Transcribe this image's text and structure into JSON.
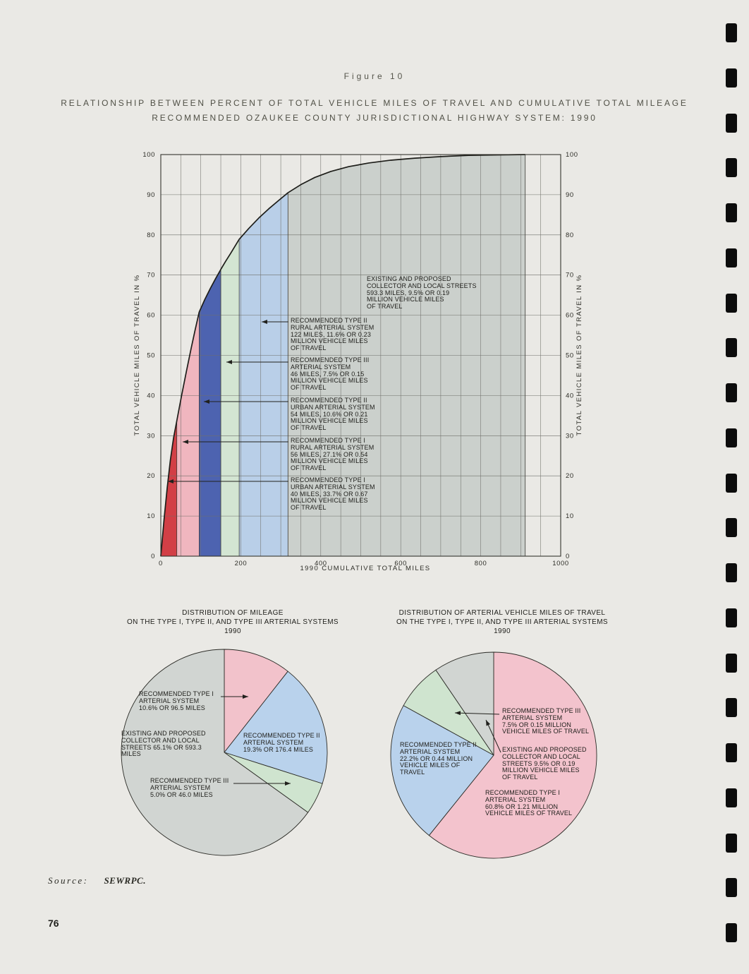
{
  "header": {
    "figure_label": "Figure 10",
    "title_line1": "RELATIONSHIP BETWEEN PERCENT OF TOTAL VEHICLE MILES OF TRAVEL AND CUMULATIVE TOTAL MILEAGE",
    "title_line2": "RECOMMENDED OZAUKEE COUNTY JURISDICTIONAL HIGHWAY SYSTEM:  1990"
  },
  "footer": {
    "source_label": "Source:",
    "source_value": "SEWRPC.",
    "page_number": "76"
  },
  "binding": {
    "count": 21
  },
  "chart_data": [
    {
      "id": "cumulative-travel-curve",
      "type": "area",
      "xlabel": "1990 CUMULATIVE TOTAL MILES",
      "ylabel": "TOTAL VEHICLE MILES OF TRAVEL IN %",
      "ylabel_both_sides": true,
      "xlim": [
        0,
        1000
      ],
      "ylim": [
        0,
        100
      ],
      "xticks": [
        0,
        200,
        400,
        600,
        800,
        1000
      ],
      "yticks": [
        0,
        10,
        20,
        30,
        40,
        50,
        60,
        70,
        80,
        90,
        100
      ],
      "x_grid_step": 50,
      "y_grid_step": 10,
      "grid": true,
      "segments": [
        {
          "id": "type-1-urban",
          "label": "RECOMMENDED TYPE I URBAN ARTERIAL SYSTEM",
          "x0": 0,
          "x1": 40,
          "miles": 40,
          "percent_of_travel": 33.7,
          "million_vehicle_miles": 0.67,
          "color": "#d23f46"
        },
        {
          "id": "type-1-rural",
          "label": "RECOMMENDED TYPE I RURAL ARTERIAL SYSTEM",
          "x0": 40,
          "x1": 96,
          "miles": 56,
          "percent_of_travel": 27.1,
          "million_vehicle_miles": 0.54,
          "color": "#f0b6bf"
        },
        {
          "id": "type-2-urban",
          "label": "RECOMMENDED TYPE II URBAN ARTERIAL SYSTEM",
          "x0": 96,
          "x1": 150,
          "miles": 54,
          "percent_of_travel": 10.6,
          "million_vehicle_miles": 0.21,
          "color": "#4d63b0"
        },
        {
          "id": "type-3",
          "label": "RECOMMENDED TYPE III ARTERIAL SYSTEM",
          "x0": 150,
          "x1": 196,
          "miles": 46,
          "percent_of_travel": 7.5,
          "million_vehicle_miles": 0.15,
          "color": "#d3e5d2"
        },
        {
          "id": "type-2-rural",
          "label": "RECOMMENDED TYPE II RURAL ARTERIAL SYSTEM",
          "x0": 196,
          "x1": 318,
          "miles": 122,
          "percent_of_travel": 11.6,
          "million_vehicle_miles": 0.23,
          "color": "#b9cfe8"
        },
        {
          "id": "collector-local",
          "label": "EXISTING AND PROPOSED COLLECTOR AND LOCAL STREETS",
          "x0": 318,
          "x1": 911.3,
          "miles": 593.3,
          "percent_of_travel": 9.5,
          "million_vehicle_miles": 0.19,
          "color": "#cbd0cc"
        }
      ],
      "curve_points": [
        [
          0,
          0
        ],
        [
          8,
          9
        ],
        [
          16,
          17
        ],
        [
          24,
          24
        ],
        [
          32,
          29.5
        ],
        [
          40,
          33.7
        ],
        [
          52,
          40
        ],
        [
          64,
          46
        ],
        [
          76,
          51.8
        ],
        [
          86,
          56.4
        ],
        [
          96,
          60.8
        ],
        [
          110,
          63.9
        ],
        [
          124,
          66.7
        ],
        [
          137,
          69.1
        ],
        [
          150,
          71.4
        ],
        [
          162,
          73.4
        ],
        [
          174,
          75.3
        ],
        [
          185,
          77.1
        ],
        [
          196,
          78.9
        ],
        [
          220,
          81.6
        ],
        [
          245,
          84.2
        ],
        [
          270,
          86.5
        ],
        [
          295,
          88.6
        ],
        [
          318,
          90.5
        ],
        [
          350,
          92.5
        ],
        [
          385,
          94.3
        ],
        [
          425,
          95.8
        ],
        [
          470,
          97
        ],
        [
          520,
          97.9
        ],
        [
          575,
          98.6
        ],
        [
          635,
          99.1
        ],
        [
          700,
          99.5
        ],
        [
          770,
          99.8
        ],
        [
          840,
          99.9
        ],
        [
          911.3,
          100
        ]
      ],
      "annotations": [
        {
          "target": "collector-local",
          "lines": [
            "EXISTING AND PROPOSED",
            "COLLECTOR AND LOCAL STREETS",
            "593.3 MILES, 9.5% OR 0.19",
            "MILLION VEHICLE MILES",
            "OF TRAVEL"
          ]
        },
        {
          "target": "type-2-rural",
          "lines": [
            "RECOMMENDED TYPE II",
            "RURAL ARTERIAL SYSTEM",
            "122 MILES, 11.6% OR 0.23",
            "MILLION VEHICLE MILES",
            "OF TRAVEL"
          ]
        },
        {
          "target": "type-3",
          "lines": [
            "RECOMMENDED TYPE III",
            "ARTERIAL SYSTEM",
            "46 MILES, 7.5% OR 0.15",
            "MILLION VEHICLE MILES",
            "OF TRAVEL"
          ]
        },
        {
          "target": "type-2-urban",
          "lines": [
            "RECOMMENDED TYPE II",
            "URBAN ARTERIAL SYSTEM",
            "54 MILES, 10.6% OR 0.21",
            "MILLION VEHICLE MILES",
            "OF TRAVEL"
          ]
        },
        {
          "target": "type-1-rural",
          "lines": [
            "RECOMMENDED TYPE I",
            "RURAL ARTERIAL SYSTEM",
            "56 MILES, 27.1% OR 0.54",
            "MILLION VEHICLE MILES",
            "OF TRAVEL"
          ]
        },
        {
          "target": "type-1-urban",
          "lines": [
            "RECOMMENDED TYPE I",
            "URBAN ARTERIAL SYSTEM",
            "40 MILES, 33.7% OR 0.67",
            "MILLION VEHICLE MILES",
            "OF TRAVEL"
          ]
        }
      ]
    },
    {
      "id": "mileage-distribution-pie",
      "type": "pie",
      "title_lines": [
        "DISTRIBUTION OF MILEAGE",
        "ON THE TYPE I, TYPE II, AND TYPE III ARTERIAL SYSTEMS",
        "1990"
      ],
      "start_angle_deg": 0,
      "slices": [
        {
          "name": "RECOMMENDED TYPE I ARTERIAL SYSTEM",
          "value": 10.6,
          "detail": "96.5 MILES",
          "color": "#f2c2cb"
        },
        {
          "name": "RECOMMENDED TYPE II ARTERIAL SYSTEM",
          "value": 19.3,
          "detail": "176.4 MILES",
          "color": "#b9d2ec"
        },
        {
          "name": "RECOMMENDED TYPE III ARTERIAL SYSTEM",
          "value": 5.0,
          "detail": "46.0 MILES",
          "color": "#cfe4cf"
        },
        {
          "name": "EXISTING AND PROPOSED COLLECTOR AND LOCAL STREETS",
          "value": 65.1,
          "detail": "593.3 MILES",
          "color": "#d1d5d2"
        }
      ],
      "labels": [
        {
          "target": "type-1",
          "lines": [
            "RECOMMENDED TYPE I",
            "ARTERIAL SYSTEM",
            "10.6% OR 96.5 MILES"
          ]
        },
        {
          "target": "collector-local",
          "lines": [
            "EXISTING AND PROPOSED",
            "COLLECTOR AND LOCAL",
            "STREETS 65.1% OR 593.3",
            "MILES"
          ]
        },
        {
          "target": "type-2",
          "lines": [
            "RECOMMENDED TYPE II",
            "ARTERIAL SYSTEM",
            "19.3% OR 176.4 MILES"
          ]
        },
        {
          "target": "type-3",
          "lines": [
            "RECOMMENDED TYPE III",
            "ARTERIAL SYSTEM",
            "5.0% OR 46.0 MILES"
          ]
        }
      ]
    },
    {
      "id": "travel-distribution-pie",
      "type": "pie",
      "title_lines": [
        "DISTRIBUTION OF ARTERIAL VEHICLE MILES OF TRAVEL",
        "ON THE TYPE I, TYPE II, AND TYPE III ARTERIAL SYSTEMS",
        "1990"
      ],
      "start_angle_deg": 0,
      "slices": [
        {
          "name": "RECOMMENDED TYPE I ARTERIAL SYSTEM",
          "value": 60.8,
          "detail": "1.21 MILLION VEHICLE MILES OF TRAVEL",
          "color": "#f3c3cd"
        },
        {
          "name": "RECOMMENDED TYPE II ARTERIAL SYSTEM",
          "value": 22.2,
          "detail": "0.44 MILLION VEHICLE MILES OF TRAVEL",
          "color": "#b9d2ec"
        },
        {
          "name": "RECOMMENDED TYPE III ARTERIAL SYSTEM",
          "value": 7.5,
          "detail": "0.15 MILLION VEHICLE MILES OF TRAVEL",
          "color": "#cfe4cf"
        },
        {
          "name": "EXISTING AND PROPOSED COLLECTOR AND LOCAL STREETS",
          "value": 9.5,
          "detail": "0.19 MILLION VEHICLE MILES OF TRAVEL",
          "color": "#d1d5d2"
        }
      ],
      "labels": [
        {
          "target": "type-3",
          "lines": [
            "RECOMMENDED TYPE III",
            "ARTERIAL SYSTEM",
            "7.5% OR 0.15 MILLION",
            "VEHICLE MILES OF TRAVEL"
          ]
        },
        {
          "target": "type-2",
          "lines": [
            "RECOMMENDED TYPE II",
            "ARTERIAL SYSTEM",
            "22.2% OR 0.44 MILLION",
            "VEHICLE MILES OF",
            "TRAVEL"
          ]
        },
        {
          "target": "collector-local",
          "lines": [
            "EXISTING AND PROPOSED",
            "COLLECTOR AND LOCAL",
            "STREETS 9.5% OR 0.19",
            "MILLION VEHICLE MILES",
            "OF TRAVEL"
          ]
        },
        {
          "target": "type-1",
          "lines": [
            "RECOMMENDED TYPE I",
            "ARTERIAL SYSTEM",
            "60.8% OR 1.21 MILLION",
            "VEHICLE MILES OF TRAVEL"
          ]
        }
      ]
    }
  ]
}
